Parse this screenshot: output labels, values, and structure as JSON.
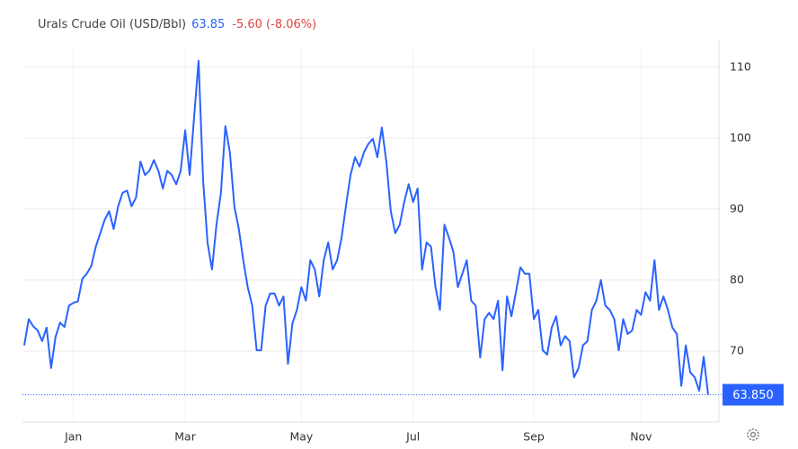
{
  "chart_data": {
    "type": "line",
    "title": "Urals Crude Oil (USD/Bbl)",
    "price": "63.85",
    "change": "-5.60 (-8.06%)",
    "last_label": "63.850",
    "categories": [
      null,
      null,
      null,
      null,
      null,
      null,
      null,
      null,
      null,
      null,
      null,
      "Jan",
      null,
      null,
      null,
      null,
      null,
      null,
      null,
      null,
      null,
      null,
      null,
      null,
      null,
      null,
      null,
      null,
      null,
      null,
      null,
      null,
      null,
      null,
      null,
      null,
      "Mar",
      null,
      null,
      null,
      null,
      null,
      null,
      null,
      null,
      null,
      null,
      null,
      null,
      null,
      null,
      null,
      null,
      null,
      null,
      null,
      null,
      null,
      null,
      null,
      null,
      null,
      "May",
      null,
      null,
      null,
      null,
      null,
      null,
      null,
      null,
      null,
      null,
      null,
      null,
      null,
      null,
      null,
      null,
      null,
      null,
      null,
      null,
      null,
      null,
      null,
      null,
      "Jul",
      null,
      null,
      null,
      null,
      null,
      null,
      null,
      null,
      null,
      null,
      null,
      null,
      null,
      null,
      null,
      null,
      null,
      null,
      null,
      null,
      null,
      null,
      null,
      null,
      null,
      null,
      "Sep",
      null,
      null,
      null,
      null,
      null,
      null,
      null,
      null,
      null,
      null,
      null,
      null,
      null,
      null,
      null,
      null,
      null,
      null,
      null,
      null,
      null,
      null,
      null,
      "Nov",
      null,
      null,
      null,
      null,
      null,
      null,
      null,
      null,
      null,
      null,
      null,
      null,
      null,
      null,
      null
    ],
    "series": [
      {
        "name": "Urals Crude Oil",
        "color": "#2962ff",
        "values": [
          70.8,
          74.5,
          73.5,
          72.9,
          71.4,
          73.3,
          67.6,
          72,
          74,
          73.4,
          76.4,
          76.8,
          77,
          80.2,
          80.9,
          82,
          84.7,
          86.6,
          88.5,
          89.7,
          87.2,
          90.4,
          92.3,
          92.6,
          90.4,
          91.6,
          96.7,
          94.8,
          95.4,
          96.9,
          95.4,
          92.9,
          95.4,
          94.8,
          93.5,
          95.4,
          101.1,
          94.8,
          103,
          110.9,
          94.2,
          85.3,
          81.5,
          87.8,
          92.3,
          101.7,
          98,
          90.4,
          87.2,
          82.8,
          79,
          76.4,
          70.1,
          70.1,
          76.4,
          78.1,
          78.1,
          76.4,
          77.7,
          68.2,
          73.9,
          75.8,
          79,
          77.1,
          82.8,
          81.5,
          77.7,
          82.8,
          85.3,
          81.5,
          82.8,
          86,
          90.6,
          94.8,
          97.3,
          96,
          98,
          99.2,
          99.9,
          97.3,
          101.5,
          96.7,
          89.7,
          86.6,
          87.8,
          91,
          93.5,
          91,
          92.9,
          81.5,
          85.3,
          84.7,
          79,
          75.8,
          87.8,
          86,
          84,
          79,
          80.9,
          82.8,
          77.1,
          76.4,
          69.1,
          74.5,
          75.4,
          74.5,
          77.1,
          67.3,
          77.7,
          74.9,
          78.3,
          81.8,
          80.9,
          80.9,
          74.5,
          75.8,
          70.1,
          69.5,
          73.3,
          74.9,
          70.8,
          72.1,
          71.4,
          66.3,
          67.6,
          70.8,
          71.4,
          75.8,
          77.1,
          80,
          76.4,
          75.8,
          74.5,
          70.1,
          74.5,
          72.4,
          72.9,
          75.8,
          75.1,
          78.3,
          77.1,
          82.8,
          75.8,
          77.7,
          75.8,
          73.3,
          72.4,
          65.1,
          70.8,
          67,
          66.3,
          64.4,
          69.2,
          63.85
        ]
      }
    ],
    "ylim": [
      60,
      112.5
    ],
    "yticks": [
      70,
      80,
      90,
      100,
      110
    ],
    "grid": true
  }
}
